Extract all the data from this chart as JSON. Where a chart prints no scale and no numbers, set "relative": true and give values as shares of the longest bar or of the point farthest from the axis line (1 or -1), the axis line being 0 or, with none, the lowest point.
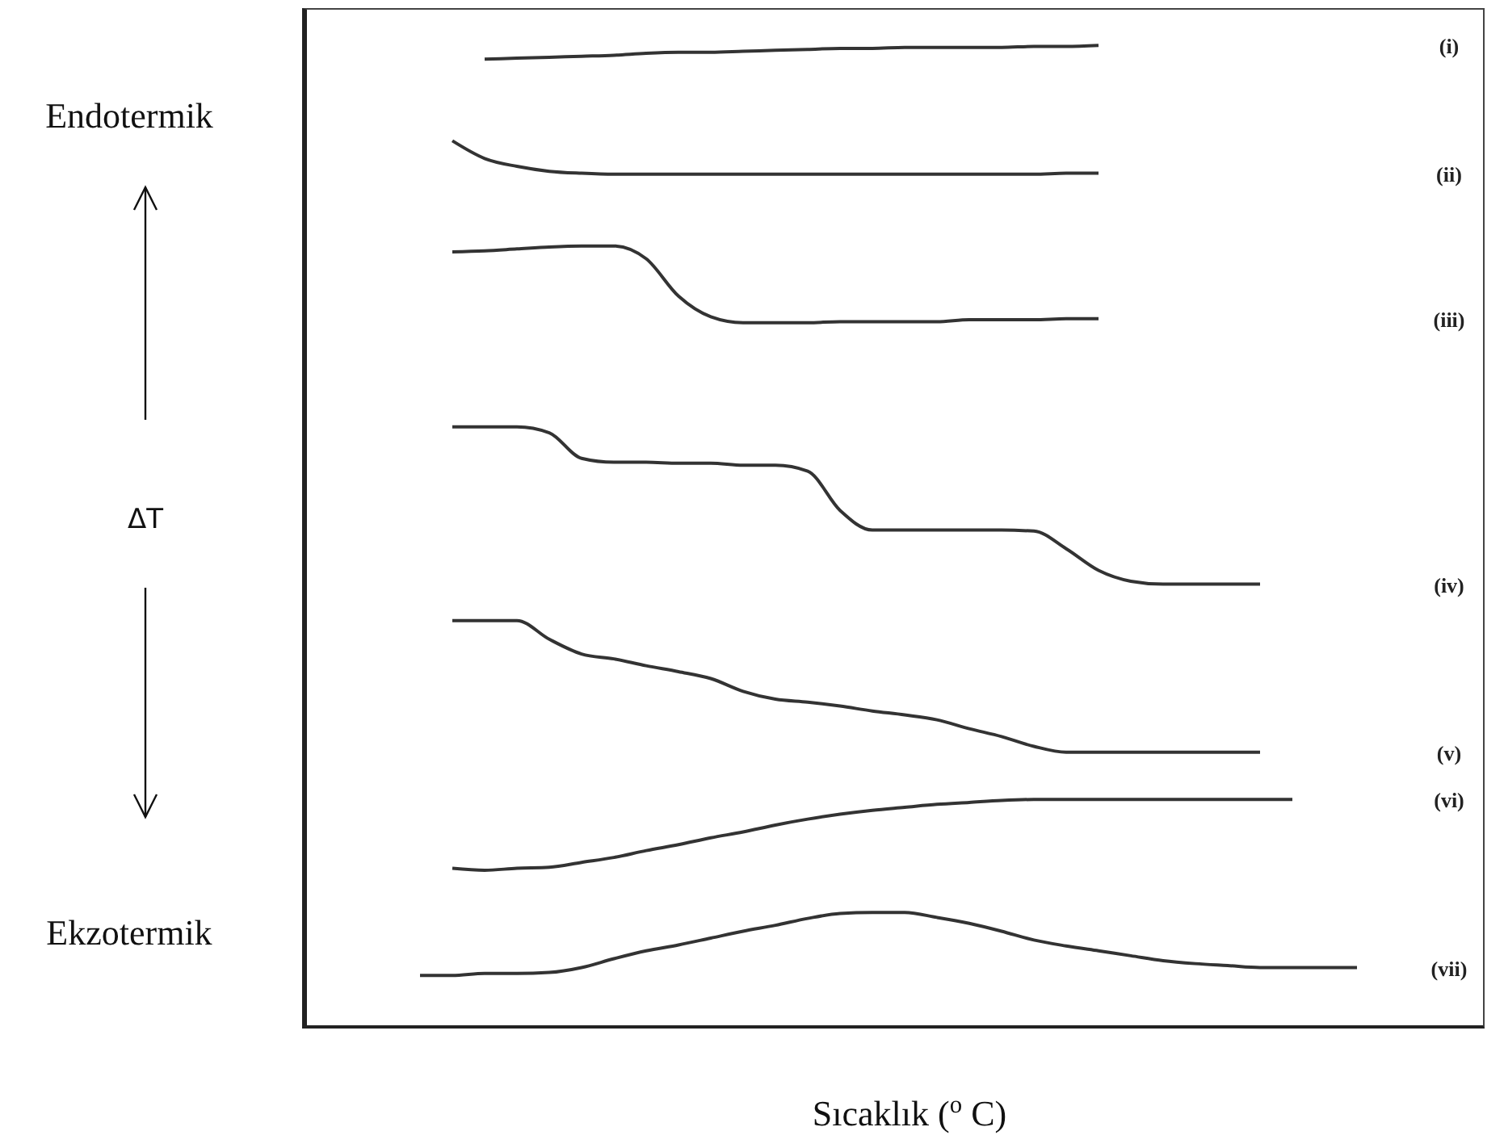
{
  "chart_data": {
    "type": "line",
    "relative": true,
    "xlabel": "Sıcaklık ($^{o}$C)",
    "annotations": [
      "Endotermik",
      "ΔT",
      "Ekzotermik"
    ],
    "categories": [
      null,
      null,
      null,
      null,
      null,
      null,
      null,
      null,
      null,
      null,
      null,
      null,
      null,
      null,
      null,
      null,
      null,
      null,
      null,
      null,
      null,
      null,
      null,
      null,
      null,
      null,
      null,
      null,
      null,
      null
    ],
    "series": [
      {
        "name": "(i)",
        "color": "#333333",
        "values": [
          null,
          null,
          0.986,
          0.987,
          0.988,
          0.989,
          0.99,
          0.992,
          0.993,
          0.993,
          0.994,
          0.995,
          0.996,
          0.997,
          0.997,
          0.998,
          0.998,
          0.998,
          0.998,
          0.999,
          0.999,
          1.0,
          null,
          null,
          null,
          null,
          null,
          null,
          null,
          null
        ]
      },
      {
        "name": "(ii)",
        "color": "#333333",
        "values": [
          null,
          0.903,
          0.885,
          0.877,
          0.872,
          0.87,
          0.869,
          0.869,
          0.869,
          0.869,
          0.869,
          0.869,
          0.869,
          0.869,
          0.869,
          0.869,
          0.869,
          0.869,
          0.869,
          0.869,
          0.87,
          0.87,
          null,
          null,
          null,
          null,
          null,
          null,
          null,
          null
        ]
      },
      {
        "name": "(iii)",
        "color": "#333333",
        "values": [
          null,
          0.79,
          0.791,
          0.793,
          0.795,
          0.796,
          0.796,
          0.783,
          0.745,
          0.724,
          0.718,
          0.718,
          0.718,
          0.719,
          0.719,
          0.719,
          0.719,
          0.721,
          0.721,
          0.721,
          0.722,
          0.722,
          null,
          null,
          null,
          null,
          null,
          null,
          null,
          null
        ]
      },
      {
        "name": "(iv)",
        "color": "#333333",
        "values": [
          null,
          0.612,
          0.612,
          0.612,
          0.606,
          0.58,
          0.576,
          0.576,
          0.575,
          0.575,
          0.573,
          0.573,
          0.567,
          0.527,
          0.507,
          0.507,
          0.507,
          0.507,
          0.507,
          0.506,
          0.488,
          0.466,
          0.455,
          0.452,
          0.452,
          0.452,
          0.452,
          null,
          null,
          null
        ]
      },
      {
        "name": "(v)",
        "color": "#333333",
        "values": [
          null,
          0.415,
          0.415,
          0.415,
          0.396,
          0.381,
          0.376,
          0.369,
          0.363,
          0.356,
          0.343,
          0.335,
          0.332,
          0.328,
          0.323,
          0.319,
          0.314,
          0.305,
          0.297,
          0.287,
          0.281,
          0.281,
          0.281,
          0.281,
          0.281,
          0.281,
          0.281,
          null,
          null,
          null
        ]
      },
      {
        "name": "(vi)",
        "color": "#333333",
        "values": [
          null,
          0.163,
          0.161,
          0.163,
          0.164,
          0.169,
          0.174,
          0.181,
          0.187,
          0.194,
          0.2,
          0.207,
          0.213,
          0.218,
          0.222,
          0.225,
          0.228,
          0.23,
          0.232,
          0.233,
          0.233,
          0.233,
          0.233,
          0.233,
          0.233,
          0.233,
          0.233,
          0.233,
          null,
          null
        ]
      },
      {
        "name": "(vii)",
        "color": "#333333",
        "values": [
          0.054,
          0.054,
          0.056,
          0.056,
          0.057,
          0.062,
          0.071,
          0.079,
          0.085,
          0.092,
          0.099,
          0.105,
          0.112,
          0.117,
          0.118,
          0.118,
          0.113,
          0.107,
          0.099,
          0.09,
          0.084,
          0.079,
          0.074,
          0.069,
          0.066,
          0.064,
          0.062,
          0.062,
          0.062,
          0.062
        ]
      }
    ]
  }
}
